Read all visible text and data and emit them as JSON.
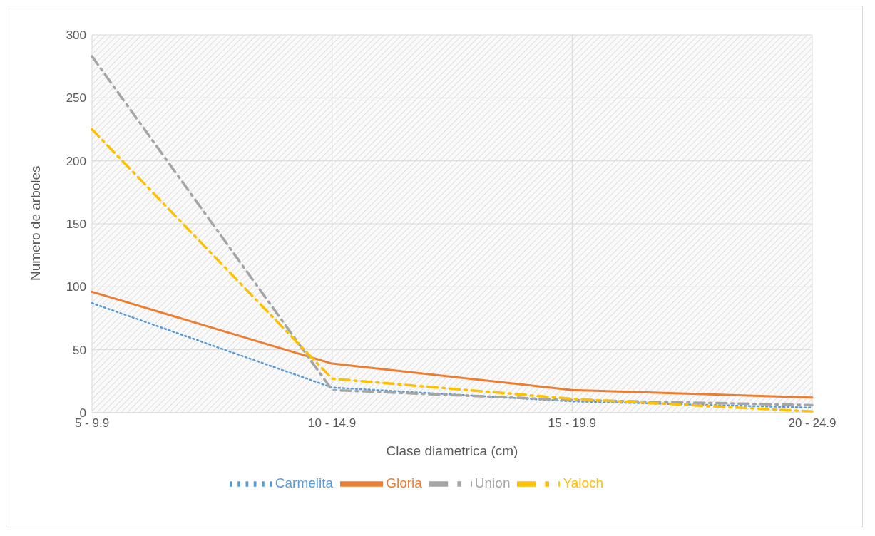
{
  "chart_data": {
    "type": "line",
    "xlabel": "Clase diametrica (cm)",
    "ylabel": "Numero de arboles",
    "categories": [
      "5 - 9.9",
      "10 - 14.9",
      "15 - 19.9",
      "20 - 24.9"
    ],
    "series": [
      {
        "name": "Carmelita",
        "color": "#5b9bd5",
        "line_style": "dotted",
        "values": [
          87,
          20,
          9,
          4
        ]
      },
      {
        "name": "Gloria",
        "color": "#ed7d31",
        "line_style": "solid",
        "values": [
          96,
          39,
          18,
          12
        ]
      },
      {
        "name": "Union",
        "color": "#a5a5a5",
        "line_style": "dashed",
        "values": [
          283,
          18,
          10,
          6
        ]
      },
      {
        "name": "Yaloch",
        "color": "#ffc000",
        "line_style": "dashed",
        "values": [
          225,
          27,
          11,
          1
        ]
      }
    ],
    "ylim": [
      0,
      300
    ],
    "yticks": [
      0,
      50,
      100,
      150,
      200,
      250,
      300
    ],
    "grid": true,
    "legend": "bottom",
    "marker": "none"
  }
}
